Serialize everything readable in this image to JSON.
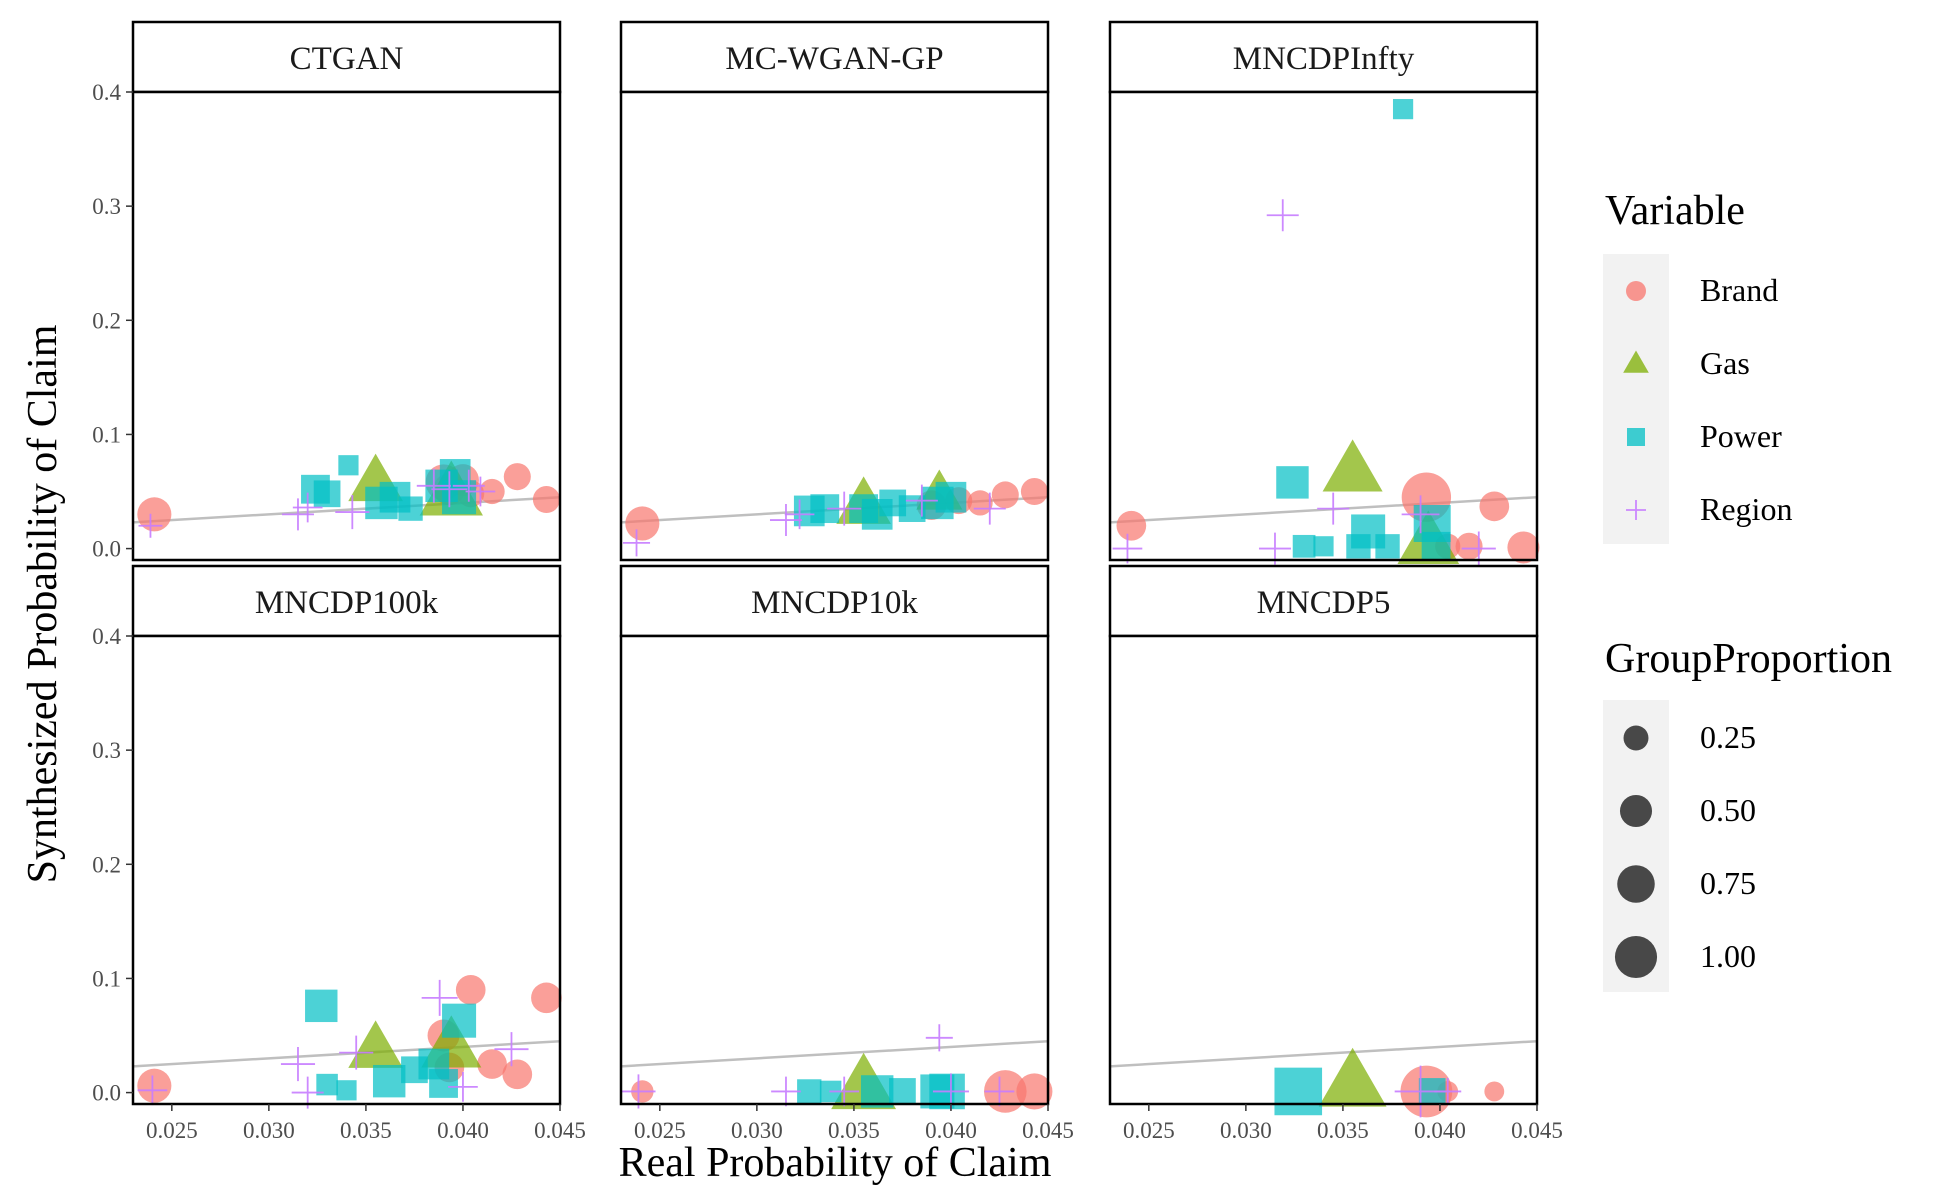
{
  "chart_data": {
    "type": "scatter",
    "xlabel": "Real Probability of Claim",
    "ylabel": "Synthesized Probability of Claim",
    "xlim": [
      0.023,
      0.045
    ],
    "ylim": [
      -0.01,
      0.4
    ],
    "x_ticks": [
      "0.025",
      "0.030",
      "0.035",
      "0.040",
      "0.045"
    ],
    "y_ticks": [
      "0.0",
      "0.1",
      "0.2",
      "0.3",
      "0.4"
    ],
    "grid": false,
    "reference_line": {
      "from": [
        0.023,
        0.023
      ],
      "to": [
        0.045,
        0.045
      ]
    },
    "colors": {
      "Brand": "#F8766D",
      "Gas": "#7CAE00",
      "Power": "#00BFC4",
      "Region": "#C77CFF",
      "ref_line": "#BFBFBF"
    },
    "legend_variable": {
      "title": "Variable",
      "items": [
        {
          "label": "Brand",
          "shape": "circle"
        },
        {
          "label": "Gas",
          "shape": "triangle"
        },
        {
          "label": "Power",
          "shape": "square"
        },
        {
          "label": "Region",
          "shape": "plus"
        }
      ]
    },
    "legend_size": {
      "title": "GroupProportion",
      "items": [
        {
          "label": "0.25",
          "value": 0.25
        },
        {
          "label": "0.50",
          "value": 0.5
        },
        {
          "label": "0.75",
          "value": 0.75
        },
        {
          "label": "1.00",
          "value": 1.0
        }
      ]
    },
    "panels": [
      {
        "title": "CTGAN",
        "points": [
          {
            "v": "Brand",
            "x": 0.0241,
            "y": 0.03,
            "p": 0.3
          },
          {
            "v": "Brand",
            "x": 0.039,
            "y": 0.058,
            "p": 0.35
          },
          {
            "v": "Brand",
            "x": 0.0393,
            "y": 0.052,
            "p": 0.25
          },
          {
            "v": "Brand",
            "x": 0.04,
            "y": 0.06,
            "p": 0.25
          },
          {
            "v": "Brand",
            "x": 0.0404,
            "y": 0.048,
            "p": 0.15
          },
          {
            "v": "Brand",
            "x": 0.0415,
            "y": 0.05,
            "p": 0.12
          },
          {
            "v": "Brand",
            "x": 0.0428,
            "y": 0.063,
            "p": 0.15
          },
          {
            "v": "Brand",
            "x": 0.0443,
            "y": 0.043,
            "p": 0.15
          },
          {
            "v": "Gas",
            "x": 0.0355,
            "y": 0.058,
            "p": 0.55
          },
          {
            "v": "Gas",
            "x": 0.0394,
            "y": 0.048,
            "p": 0.8
          },
          {
            "v": "Power",
            "x": 0.0324,
            "y": 0.052,
            "p": 0.25
          },
          {
            "v": "Power",
            "x": 0.033,
            "y": 0.048,
            "p": 0.2
          },
          {
            "v": "Power",
            "x": 0.0341,
            "y": 0.073,
            "p": 0.08
          },
          {
            "v": "Power",
            "x": 0.0358,
            "y": 0.04,
            "p": 0.35
          },
          {
            "v": "Power",
            "x": 0.0365,
            "y": 0.045,
            "p": 0.3
          },
          {
            "v": "Power",
            "x": 0.0373,
            "y": 0.035,
            "p": 0.15
          },
          {
            "v": "Power",
            "x": 0.0389,
            "y": 0.055,
            "p": 0.35
          },
          {
            "v": "Power",
            "x": 0.0396,
            "y": 0.065,
            "p": 0.3
          },
          {
            "v": "Power",
            "x": 0.0398,
            "y": 0.045,
            "p": 0.4
          },
          {
            "v": "Region",
            "x": 0.0239,
            "y": 0.02,
            "p": 0.1
          },
          {
            "v": "Region",
            "x": 0.0315,
            "y": 0.03,
            "p": 0.25
          },
          {
            "v": "Region",
            "x": 0.032,
            "y": 0.036,
            "p": 0.2
          },
          {
            "v": "Region",
            "x": 0.0343,
            "y": 0.032,
            "p": 0.3
          },
          {
            "v": "Region",
            "x": 0.0385,
            "y": 0.055,
            "p": 0.3
          },
          {
            "v": "Region",
            "x": 0.0393,
            "y": 0.052,
            "p": 0.35
          },
          {
            "v": "Region",
            "x": 0.0403,
            "y": 0.055,
            "p": 0.25
          },
          {
            "v": "Region",
            "x": 0.0409,
            "y": 0.05,
            "p": 0.2
          }
        ]
      },
      {
        "title": "MC-WGAN-GP",
        "points": [
          {
            "v": "Brand",
            "x": 0.0241,
            "y": 0.022,
            "p": 0.3
          },
          {
            "v": "Brand",
            "x": 0.039,
            "y": 0.038,
            "p": 0.2
          },
          {
            "v": "Brand",
            "x": 0.0404,
            "y": 0.042,
            "p": 0.15
          },
          {
            "v": "Brand",
            "x": 0.0415,
            "y": 0.04,
            "p": 0.12
          },
          {
            "v": "Brand",
            "x": 0.0428,
            "y": 0.047,
            "p": 0.15
          },
          {
            "v": "Brand",
            "x": 0.0443,
            "y": 0.05,
            "p": 0.15
          },
          {
            "v": "Gas",
            "x": 0.0355,
            "y": 0.038,
            "p": 0.55
          },
          {
            "v": "Gas",
            "x": 0.0394,
            "y": 0.048,
            "p": 0.35
          },
          {
            "v": "Power",
            "x": 0.0327,
            "y": 0.033,
            "p": 0.3
          },
          {
            "v": "Power",
            "x": 0.0335,
            "y": 0.035,
            "p": 0.25
          },
          {
            "v": "Power",
            "x": 0.0355,
            "y": 0.035,
            "p": 0.25
          },
          {
            "v": "Power",
            "x": 0.0362,
            "y": 0.03,
            "p": 0.3
          },
          {
            "v": "Power",
            "x": 0.037,
            "y": 0.04,
            "p": 0.2
          },
          {
            "v": "Power",
            "x": 0.038,
            "y": 0.035,
            "p": 0.2
          },
          {
            "v": "Power",
            "x": 0.0393,
            "y": 0.04,
            "p": 0.35
          },
          {
            "v": "Power",
            "x": 0.04,
            "y": 0.045,
            "p": 0.3
          },
          {
            "v": "Region",
            "x": 0.0238,
            "y": 0.005,
            "p": 0.15
          },
          {
            "v": "Region",
            "x": 0.0315,
            "y": 0.025,
            "p": 0.25
          },
          {
            "v": "Region",
            "x": 0.0322,
            "y": 0.03,
            "p": 0.2
          },
          {
            "v": "Region",
            "x": 0.0345,
            "y": 0.035,
            "p": 0.3
          },
          {
            "v": "Region",
            "x": 0.0385,
            "y": 0.042,
            "p": 0.25
          },
          {
            "v": "Region",
            "x": 0.042,
            "y": 0.035,
            "p": 0.25
          }
        ]
      },
      {
        "title": "MNCDPInfty",
        "points": [
          {
            "v": "Brand",
            "x": 0.0241,
            "y": 0.02,
            "p": 0.2
          },
          {
            "v": "Brand",
            "x": 0.0393,
            "y": 0.045,
            "p": 0.8
          },
          {
            "v": "Brand",
            "x": 0.0404,
            "y": 0.002,
            "p": 0.12
          },
          {
            "v": "Brand",
            "x": 0.0415,
            "y": 0.002,
            "p": 0.15
          },
          {
            "v": "Brand",
            "x": 0.0428,
            "y": 0.037,
            "p": 0.2
          },
          {
            "v": "Brand",
            "x": 0.0443,
            "y": 0.001,
            "p": 0.25
          },
          {
            "v": "Gas",
            "x": 0.0355,
            "y": 0.068,
            "p": 0.7
          },
          {
            "v": "Gas",
            "x": 0.0394,
            "y": 0.005,
            "p": 0.75
          },
          {
            "v": "Power",
            "x": 0.0324,
            "y": 0.058,
            "p": 0.35
          },
          {
            "v": "Power",
            "x": 0.033,
            "y": 0.002,
            "p": 0.12
          },
          {
            "v": "Power",
            "x": 0.034,
            "y": 0.002,
            "p": 0.08
          },
          {
            "v": "Power",
            "x": 0.0358,
            "y": 0.002,
            "p": 0.15
          },
          {
            "v": "Power",
            "x": 0.0363,
            "y": 0.015,
            "p": 0.4
          },
          {
            "v": "Power",
            "x": 0.0373,
            "y": 0.002,
            "p": 0.15
          },
          {
            "v": "Power",
            "x": 0.0381,
            "y": 0.385,
            "p": 0.08
          },
          {
            "v": "Power",
            "x": 0.0396,
            "y": 0.022,
            "p": 0.5
          },
          {
            "v": "Power",
            "x": 0.0398,
            "y": 0.002,
            "p": 0.25
          },
          {
            "v": "Region",
            "x": 0.0239,
            "y": 0.0,
            "p": 0.2
          },
          {
            "v": "Region",
            "x": 0.0315,
            "y": 0.0,
            "p": 0.25
          },
          {
            "v": "Region",
            "x": 0.0319,
            "y": 0.292,
            "p": 0.25
          },
          {
            "v": "Region",
            "x": 0.0345,
            "y": 0.035,
            "p": 0.25
          },
          {
            "v": "Region",
            "x": 0.039,
            "y": 0.03,
            "p": 0.4
          },
          {
            "v": "Region",
            "x": 0.042,
            "y": 0.0,
            "p": 0.3
          }
        ]
      },
      {
        "title": "MNCDP100k",
        "points": [
          {
            "v": "Brand",
            "x": 0.0241,
            "y": 0.006,
            "p": 0.3
          },
          {
            "v": "Brand",
            "x": 0.039,
            "y": 0.05,
            "p": 0.25
          },
          {
            "v": "Brand",
            "x": 0.0393,
            "y": 0.022,
            "p": 0.2
          },
          {
            "v": "Brand",
            "x": 0.0404,
            "y": 0.09,
            "p": 0.2
          },
          {
            "v": "Brand",
            "x": 0.0415,
            "y": 0.025,
            "p": 0.2
          },
          {
            "v": "Brand",
            "x": 0.0428,
            "y": 0.016,
            "p": 0.2
          },
          {
            "v": "Brand",
            "x": 0.0443,
            "y": 0.083,
            "p": 0.22
          },
          {
            "v": "Gas",
            "x": 0.0355,
            "y": 0.038,
            "p": 0.55
          },
          {
            "v": "Gas",
            "x": 0.0394,
            "y": 0.04,
            "p": 0.7
          },
          {
            "v": "Power",
            "x": 0.0327,
            "y": 0.076,
            "p": 0.35
          },
          {
            "v": "Power",
            "x": 0.033,
            "y": 0.007,
            "p": 0.1
          },
          {
            "v": "Power",
            "x": 0.034,
            "y": 0.002,
            "p": 0.08
          },
          {
            "v": "Power",
            "x": 0.0362,
            "y": 0.01,
            "p": 0.35
          },
          {
            "v": "Power",
            "x": 0.0375,
            "y": 0.02,
            "p": 0.2
          },
          {
            "v": "Power",
            "x": 0.0385,
            "y": 0.025,
            "p": 0.3
          },
          {
            "v": "Power",
            "x": 0.039,
            "y": 0.008,
            "p": 0.25
          },
          {
            "v": "Power",
            "x": 0.0398,
            "y": 0.063,
            "p": 0.4
          },
          {
            "v": "Region",
            "x": 0.024,
            "y": 0.002,
            "p": 0.2
          },
          {
            "v": "Region",
            "x": 0.0315,
            "y": 0.025,
            "p": 0.3
          },
          {
            "v": "Region",
            "x": 0.032,
            "y": 0.0,
            "p": 0.25
          },
          {
            "v": "Region",
            "x": 0.0345,
            "y": 0.035,
            "p": 0.3
          },
          {
            "v": "Region",
            "x": 0.0388,
            "y": 0.083,
            "p": 0.35
          },
          {
            "v": "Region",
            "x": 0.04,
            "y": 0.005,
            "p": 0.2
          },
          {
            "v": "Region",
            "x": 0.0425,
            "y": 0.038,
            "p": 0.3
          }
        ]
      },
      {
        "title": "MNCDP10k",
        "points": [
          {
            "v": "Brand",
            "x": 0.0241,
            "y": 0.001,
            "p": 0.08
          },
          {
            "v": "Brand",
            "x": 0.0428,
            "y": 0.001,
            "p": 0.55
          },
          {
            "v": "Brand",
            "x": 0.0443,
            "y": 0.001,
            "p": 0.35
          },
          {
            "v": "Gas",
            "x": 0.0355,
            "y": 0.005,
            "p": 0.85
          },
          {
            "v": "Power",
            "x": 0.0327,
            "y": 0.001,
            "p": 0.15
          },
          {
            "v": "Power",
            "x": 0.0338,
            "y": 0.001,
            "p": 0.1
          },
          {
            "v": "Power",
            "x": 0.0362,
            "y": 0.001,
            "p": 0.35
          },
          {
            "v": "Power",
            "x": 0.0375,
            "y": 0.001,
            "p": 0.2
          },
          {
            "v": "Power",
            "x": 0.0393,
            "y": 0.001,
            "p": 0.4
          },
          {
            "v": "Power",
            "x": 0.0398,
            "y": 0.001,
            "p": 0.45
          },
          {
            "v": "Region",
            "x": 0.0239,
            "y": 0.001,
            "p": 0.3
          },
          {
            "v": "Region",
            "x": 0.0315,
            "y": 0.001,
            "p": 0.2
          },
          {
            "v": "Region",
            "x": 0.0345,
            "y": 0.001,
            "p": 0.2
          },
          {
            "v": "Region",
            "x": 0.0394,
            "y": 0.048,
            "p": 0.15
          },
          {
            "v": "Region",
            "x": 0.04,
            "y": 0.001,
            "p": 0.35
          },
          {
            "v": "Region",
            "x": 0.0425,
            "y": 0.001,
            "p": 0.2
          }
        ]
      },
      {
        "title": "MNCDP5",
        "points": [
          {
            "v": "Brand",
            "x": 0.0393,
            "y": 0.001,
            "p": 0.9
          },
          {
            "v": "Brand",
            "x": 0.0404,
            "y": 0.001,
            "p": 0.06
          },
          {
            "v": "Brand",
            "x": 0.0428,
            "y": 0.001,
            "p": 0.05
          },
          {
            "v": "Gas",
            "x": 0.0355,
            "y": 0.008,
            "p": 0.95
          },
          {
            "v": "Power",
            "x": 0.0327,
            "y": 0.001,
            "p": 0.95
          },
          {
            "v": "Power",
            "x": 0.0396,
            "y": 0.001,
            "p": 0.2
          },
          {
            "v": "Region",
            "x": 0.039,
            "y": 0.001,
            "p": 0.9
          },
          {
            "v": "Region",
            "x": 0.0404,
            "y": 0.001,
            "p": 0.15
          }
        ]
      }
    ]
  }
}
